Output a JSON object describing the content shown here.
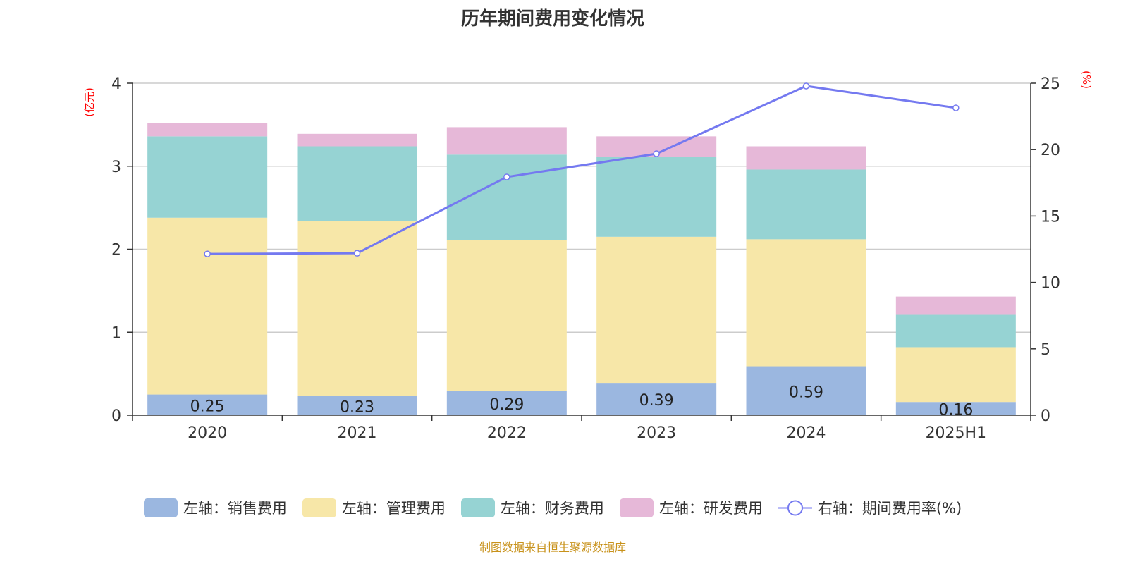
{
  "title": "历年期间费用变化情况",
  "source": "制图数据来自恒生聚源数据库",
  "chart_data": {
    "type": "bar",
    "stacked": true,
    "categories": [
      "2020",
      "2021",
      "2022",
      "2023",
      "2024",
      "2025H1"
    ],
    "left_axis": {
      "unit_label": "(亿元)",
      "ylim": [
        0,
        4
      ],
      "ticks": [
        "0",
        "1",
        "2",
        "3",
        "4"
      ]
    },
    "right_axis": {
      "unit_label": "(%)",
      "ylim": [
        0,
        25
      ],
      "ticks": [
        "0",
        "5",
        "10",
        "15",
        "20",
        "25"
      ]
    },
    "grid": true,
    "legend_position": "bottom",
    "series": [
      {
        "name": "左轴：销售费用",
        "type": "bar",
        "color": "#9bb7e0",
        "values": [
          0.25,
          0.23,
          0.29,
          0.39,
          0.59,
          0.16
        ],
        "labels": [
          "0.25",
          "0.23",
          "0.29",
          "0.39",
          "0.59",
          "0.16"
        ]
      },
      {
        "name": "左轴：管理费用",
        "type": "bar",
        "color": "#f7e7a8",
        "values": [
          2.13,
          2.11,
          1.82,
          1.76,
          1.53,
          0.66
        ]
      },
      {
        "name": "左轴：财务费用",
        "type": "bar",
        "color": "#96d3d3",
        "values": [
          0.98,
          0.9,
          1.03,
          0.96,
          0.84,
          0.39
        ]
      },
      {
        "name": "左轴：研发费用",
        "type": "bar",
        "color": "#e6b8d8",
        "values": [
          0.16,
          0.15,
          0.33,
          0.25,
          0.28,
          0.22
        ]
      },
      {
        "name": "右轴：期间费用率(%)",
        "type": "line",
        "axis": "right",
        "color": "#7479f0",
        "values": [
          12.15,
          12.2,
          17.94,
          19.69,
          24.79,
          23.14
        ]
      }
    ]
  }
}
